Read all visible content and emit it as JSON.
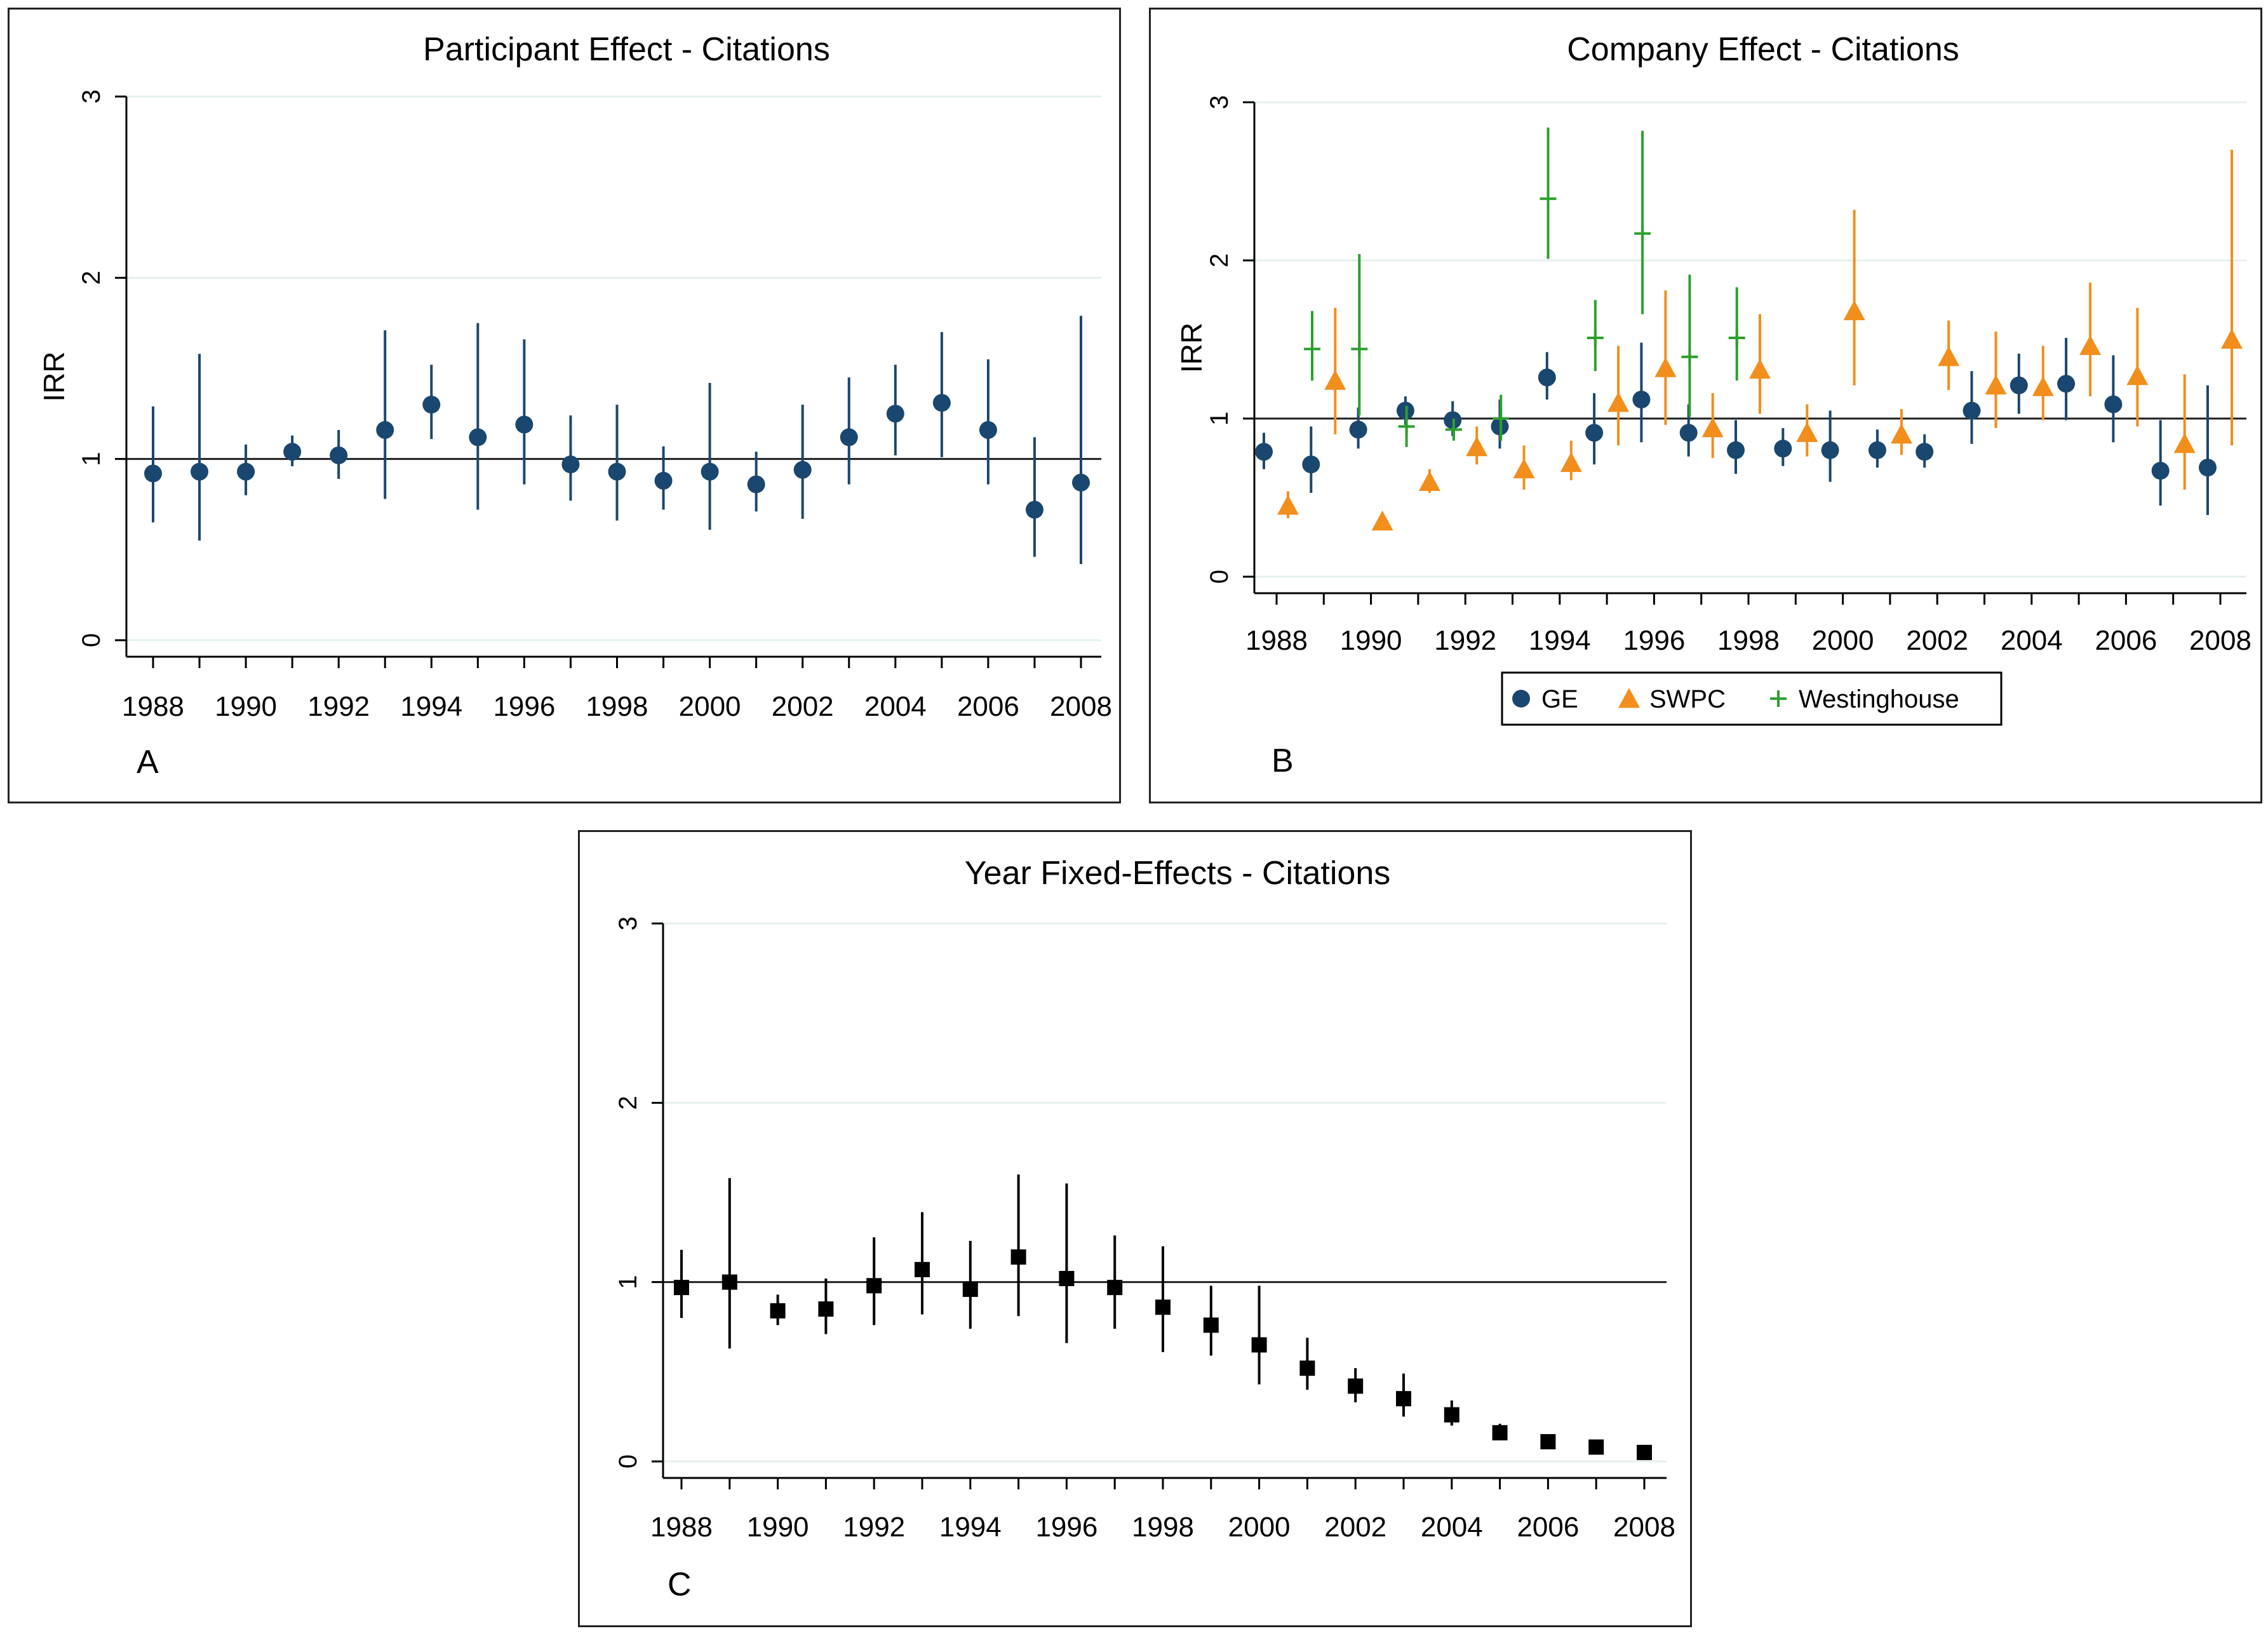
{
  "chart_data": [
    {
      "type": "scatter",
      "subtype": "point estimates with confidence intervals",
      "panel_label": "A",
      "title": "Participant Effect - Citations",
      "xlabel": "",
      "ylabel": "IRR",
      "xlim": [
        1988,
        2008
      ],
      "ylim": [
        0,
        3
      ],
      "x_ticks": [
        "1988",
        "1990",
        "1992",
        "1994",
        "1996",
        "1998",
        "2000",
        "2002",
        "2004",
        "2006",
        "2008"
      ],
      "y_ticks": [
        "0",
        "1",
        "2",
        "3"
      ],
      "reference_line": 1,
      "grid": "horizontal",
      "series": [
        {
          "name": "Participant",
          "marker": "circle",
          "color": "#1a476f",
          "points": [
            {
              "x": 1988,
              "y": 0.92,
              "lo": 0.65,
              "hi": 1.29
            },
            {
              "x": 1989,
              "y": 0.93,
              "lo": 0.55,
              "hi": 1.58
            },
            {
              "x": 1990,
              "y": 0.93,
              "lo": 0.8,
              "hi": 1.08
            },
            {
              "x": 1991,
              "y": 1.04,
              "lo": 0.96,
              "hi": 1.13
            },
            {
              "x": 1992,
              "y": 1.02,
              "lo": 0.89,
              "hi": 1.16
            },
            {
              "x": 1993,
              "y": 1.16,
              "lo": 0.78,
              "hi": 1.71
            },
            {
              "x": 1994,
              "y": 1.3,
              "lo": 1.11,
              "hi": 1.52
            },
            {
              "x": 1995,
              "y": 1.12,
              "lo": 0.72,
              "hi": 1.75
            },
            {
              "x": 1996,
              "y": 1.19,
              "lo": 0.86,
              "hi": 1.66
            },
            {
              "x": 1997,
              "y": 0.97,
              "lo": 0.77,
              "hi": 1.24
            },
            {
              "x": 1998,
              "y": 0.93,
              "lo": 0.66,
              "hi": 1.3
            },
            {
              "x": 1999,
              "y": 0.88,
              "lo": 0.72,
              "hi": 1.07
            },
            {
              "x": 2000,
              "y": 0.93,
              "lo": 0.61,
              "hi": 1.42
            },
            {
              "x": 2001,
              "y": 0.86,
              "lo": 0.71,
              "hi": 1.04
            },
            {
              "x": 2002,
              "y": 0.94,
              "lo": 0.67,
              "hi": 1.3
            },
            {
              "x": 2003,
              "y": 1.12,
              "lo": 0.86,
              "hi": 1.45
            },
            {
              "x": 2004,
              "y": 1.25,
              "lo": 1.02,
              "hi": 1.52
            },
            {
              "x": 2005,
              "y": 1.31,
              "lo": 1.01,
              "hi": 1.7
            },
            {
              "x": 2006,
              "y": 1.16,
              "lo": 0.86,
              "hi": 1.55
            },
            {
              "x": 2007,
              "y": 0.72,
              "lo": 0.46,
              "hi": 1.12
            },
            {
              "x": 2008,
              "y": 0.87,
              "lo": 0.42,
              "hi": 1.79
            }
          ]
        }
      ]
    },
    {
      "type": "scatter",
      "subtype": "point estimates with confidence intervals",
      "panel_label": "B",
      "title": "Company Effect - Citations",
      "xlabel": "",
      "ylabel": "IRR",
      "xlim": [
        1988,
        2008
      ],
      "ylim": [
        0,
        3
      ],
      "x_ticks": [
        "1988",
        "1990",
        "1992",
        "1994",
        "1996",
        "1998",
        "2000",
        "2002",
        "2004",
        "2006",
        "2008"
      ],
      "y_ticks": [
        "0",
        "1",
        "2",
        "3"
      ],
      "reference_line": 1,
      "grid": "horizontal",
      "legend": "bottom",
      "series": [
        {
          "name": "GE",
          "marker": "circle",
          "color": "#1a476f",
          "points": [
            {
              "x": 1988,
              "y": 0.79,
              "lo": 0.68,
              "hi": 0.91
            },
            {
              "x": 1989,
              "y": 0.71,
              "lo": 0.53,
              "hi": 0.95
            },
            {
              "x": 1990,
              "y": 0.93,
              "lo": 0.81,
              "hi": 1.07
            },
            {
              "x": 1991,
              "y": 1.05,
              "lo": 0.96,
              "hi": 1.14
            },
            {
              "x": 1992,
              "y": 0.99,
              "lo": 0.89,
              "hi": 1.11
            },
            {
              "x": 1993,
              "y": 0.95,
              "lo": 0.81,
              "hi": 1.12
            },
            {
              "x": 1994,
              "y": 1.26,
              "lo": 1.12,
              "hi": 1.42
            },
            {
              "x": 1995,
              "y": 0.91,
              "lo": 0.71,
              "hi": 1.16
            },
            {
              "x": 1996,
              "y": 1.12,
              "lo": 0.85,
              "hi": 1.48
            },
            {
              "x": 1997,
              "y": 0.91,
              "lo": 0.76,
              "hi": 1.09
            },
            {
              "x": 1998,
              "y": 0.8,
              "lo": 0.65,
              "hi": 0.99
            },
            {
              "x": 1999,
              "y": 0.81,
              "lo": 0.7,
              "hi": 0.94
            },
            {
              "x": 2000,
              "y": 0.8,
              "lo": 0.6,
              "hi": 1.05
            },
            {
              "x": 2001,
              "y": 0.8,
              "lo": 0.69,
              "hi": 0.93
            },
            {
              "x": 2002,
              "y": 0.79,
              "lo": 0.69,
              "hi": 0.9
            },
            {
              "x": 2003,
              "y": 1.05,
              "lo": 0.84,
              "hi": 1.3
            },
            {
              "x": 2004,
              "y": 1.21,
              "lo": 1.03,
              "hi": 1.41
            },
            {
              "x": 2005,
              "y": 1.22,
              "lo": 0.99,
              "hi": 1.51
            },
            {
              "x": 2006,
              "y": 1.09,
              "lo": 0.85,
              "hi": 1.4
            },
            {
              "x": 2007,
              "y": 0.67,
              "lo": 0.45,
              "hi": 0.99
            },
            {
              "x": 2008,
              "y": 0.69,
              "lo": 0.39,
              "hi": 1.21
            }
          ]
        },
        {
          "name": "SWPC",
          "marker": "triangle",
          "color": "#f28e1c",
          "points": [
            {
              "x": 1988,
              "y": 0.45,
              "lo": 0.37,
              "hi": 0.54
            },
            {
              "x": 1989,
              "y": 1.24,
              "lo": 0.9,
              "hi": 1.7
            },
            {
              "x": 1990,
              "y": 0.35,
              "lo": 0.31,
              "hi": 0.4
            },
            {
              "x": 1991,
              "y": 0.6,
              "lo": 0.53,
              "hi": 0.68
            },
            {
              "x": 1992,
              "y": 0.82,
              "lo": 0.71,
              "hi": 0.95
            },
            {
              "x": 1993,
              "y": 0.68,
              "lo": 0.55,
              "hi": 0.83
            },
            {
              "x": 1994,
              "y": 0.72,
              "lo": 0.61,
              "hi": 0.86
            },
            {
              "x": 1995,
              "y": 1.1,
              "lo": 0.83,
              "hi": 1.46
            },
            {
              "x": 1996,
              "y": 1.32,
              "lo": 0.96,
              "hi": 1.81
            },
            {
              "x": 1997,
              "y": 0.94,
              "lo": 0.75,
              "hi": 1.16
            },
            {
              "x": 1998,
              "y": 1.31,
              "lo": 1.03,
              "hi": 1.66
            },
            {
              "x": 1999,
              "y": 0.91,
              "lo": 0.76,
              "hi": 1.09
            },
            {
              "x": 2000,
              "y": 1.68,
              "lo": 1.21,
              "hi": 2.32
            },
            {
              "x": 2001,
              "y": 0.9,
              "lo": 0.77,
              "hi": 1.06
            },
            {
              "x": 2002,
              "y": 1.39,
              "lo": 1.18,
              "hi": 1.62
            },
            {
              "x": 2003,
              "y": 1.21,
              "lo": 0.94,
              "hi": 1.55
            },
            {
              "x": 2004,
              "y": 1.2,
              "lo": 0.99,
              "hi": 1.46
            },
            {
              "x": 2005,
              "y": 1.46,
              "lo": 1.14,
              "hi": 1.86
            },
            {
              "x": 2006,
              "y": 1.27,
              "lo": 0.95,
              "hi": 1.7
            },
            {
              "x": 2007,
              "y": 0.84,
              "lo": 0.55,
              "hi": 1.28
            },
            {
              "x": 2008,
              "y": 1.5,
              "lo": 0.83,
              "hi": 2.7
            }
          ]
        },
        {
          "name": "Westinghouse",
          "marker": "plus",
          "color": "#2ca02c",
          "points": [
            {
              "x": 1988,
              "y": 1.44,
              "lo": 1.24,
              "hi": 1.68
            },
            {
              "x": 1989,
              "y": 1.44,
              "lo": 1.02,
              "hi": 2.04
            },
            {
              "x": 1990,
              "y": 0.95,
              "lo": 0.82,
              "hi": 1.08
            },
            {
              "x": 1991,
              "y": 0.93,
              "lo": 0.86,
              "hi": 1.0
            },
            {
              "x": 1992,
              "y": 1.0,
              "lo": 0.86,
              "hi": 1.15
            },
            {
              "x": 1993,
              "y": 2.39,
              "lo": 2.01,
              "hi": 2.84
            },
            {
              "x": 1994,
              "y": 1.51,
              "lo": 1.3,
              "hi": 1.75
            },
            {
              "x": 1995,
              "y": 2.17,
              "lo": 1.66,
              "hi": 2.82
            },
            {
              "x": 1996,
              "y": 1.39,
              "lo": 1.01,
              "hi": 1.91
            },
            {
              "x": 1997,
              "y": 1.51,
              "lo": 1.24,
              "hi": 1.83
            }
          ]
        }
      ]
    },
    {
      "type": "scatter",
      "subtype": "point estimates with confidence intervals",
      "panel_label": "C",
      "title": "Year Fixed-Effects - Citations",
      "xlabel": "",
      "ylabel": "",
      "xlim": [
        1988,
        2008
      ],
      "ylim": [
        0,
        3
      ],
      "x_ticks": [
        "1988",
        "1990",
        "1992",
        "1994",
        "1996",
        "1998",
        "2000",
        "2002",
        "2004",
        "2006",
        "2008"
      ],
      "y_ticks": [
        "0",
        "1",
        "2",
        "3"
      ],
      "reference_line": 1,
      "grid": "horizontal",
      "series": [
        {
          "name": "Year",
          "marker": "square",
          "color": "#000000",
          "points": [
            {
              "x": 1988,
              "y": 0.97,
              "lo": 0.8,
              "hi": 1.18
            },
            {
              "x": 1989,
              "y": 1.0,
              "lo": 0.63,
              "hi": 1.58
            },
            {
              "x": 1990,
              "y": 0.84,
              "lo": 0.76,
              "hi": 0.93
            },
            {
              "x": 1991,
              "y": 0.85,
              "lo": 0.71,
              "hi": 1.02
            },
            {
              "x": 1992,
              "y": 0.98,
              "lo": 0.76,
              "hi": 1.25
            },
            {
              "x": 1993,
              "y": 1.07,
              "lo": 0.82,
              "hi": 1.39
            },
            {
              "x": 1994,
              "y": 0.96,
              "lo": 0.74,
              "hi": 1.23
            },
            {
              "x": 1995,
              "y": 1.14,
              "lo": 0.81,
              "hi": 1.6
            },
            {
              "x": 1996,
              "y": 1.02,
              "lo": 0.66,
              "hi": 1.55
            },
            {
              "x": 1997,
              "y": 0.97,
              "lo": 0.74,
              "hi": 1.26
            },
            {
              "x": 1998,
              "y": 0.86,
              "lo": 0.61,
              "hi": 1.2
            },
            {
              "x": 1999,
              "y": 0.76,
              "lo": 0.59,
              "hi": 0.98
            },
            {
              "x": 2000,
              "y": 0.65,
              "lo": 0.43,
              "hi": 0.98
            },
            {
              "x": 2001,
              "y": 0.52,
              "lo": 0.4,
              "hi": 0.69
            },
            {
              "x": 2002,
              "y": 0.42,
              "lo": 0.33,
              "hi": 0.52
            },
            {
              "x": 2003,
              "y": 0.35,
              "lo": 0.25,
              "hi": 0.49
            },
            {
              "x": 2004,
              "y": 0.26,
              "lo": 0.2,
              "hi": 0.34
            },
            {
              "x": 2005,
              "y": 0.16,
              "lo": 0.13,
              "hi": 0.21
            },
            {
              "x": 2006,
              "y": 0.11,
              "lo": 0.09,
              "hi": 0.13
            },
            {
              "x": 2007,
              "y": 0.08,
              "lo": 0.06,
              "hi": 0.1
            },
            {
              "x": 2008,
              "y": 0.05,
              "lo": 0.04,
              "hi": 0.06
            }
          ]
        }
      ]
    }
  ]
}
